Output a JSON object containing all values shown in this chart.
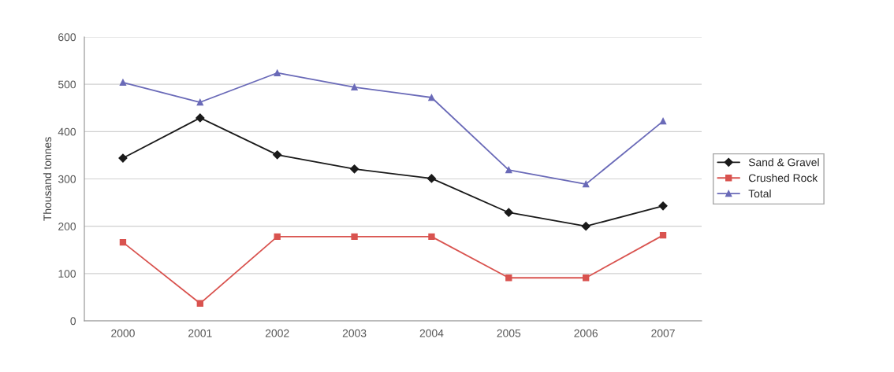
{
  "chart_data": {
    "type": "line",
    "ylabel": "Thousand tonnes",
    "categories": [
      "2000",
      "2001",
      "2002",
      "2003",
      "2004",
      "2005",
      "2006",
      "2007"
    ],
    "series": [
      {
        "name": "Sand & Gravel",
        "color": "#1a1a1a",
        "marker": "diamond",
        "values": [
          344,
          429,
          351,
          321,
          301,
          229,
          200,
          243
        ]
      },
      {
        "name": "Crushed Rock",
        "color": "#d9534f",
        "marker": "square",
        "values": [
          166,
          37,
          178,
          178,
          178,
          91,
          91,
          181
        ]
      },
      {
        "name": "Total",
        "color": "#6a6ab8",
        "marker": "triangle",
        "values": [
          504,
          462,
          524,
          494,
          472,
          319,
          289,
          422
        ]
      }
    ],
    "ylim": [
      0,
      600
    ],
    "yticks": [
      0,
      100,
      200,
      300,
      400,
      500,
      600
    ],
    "grid": "y",
    "legend": "right"
  }
}
